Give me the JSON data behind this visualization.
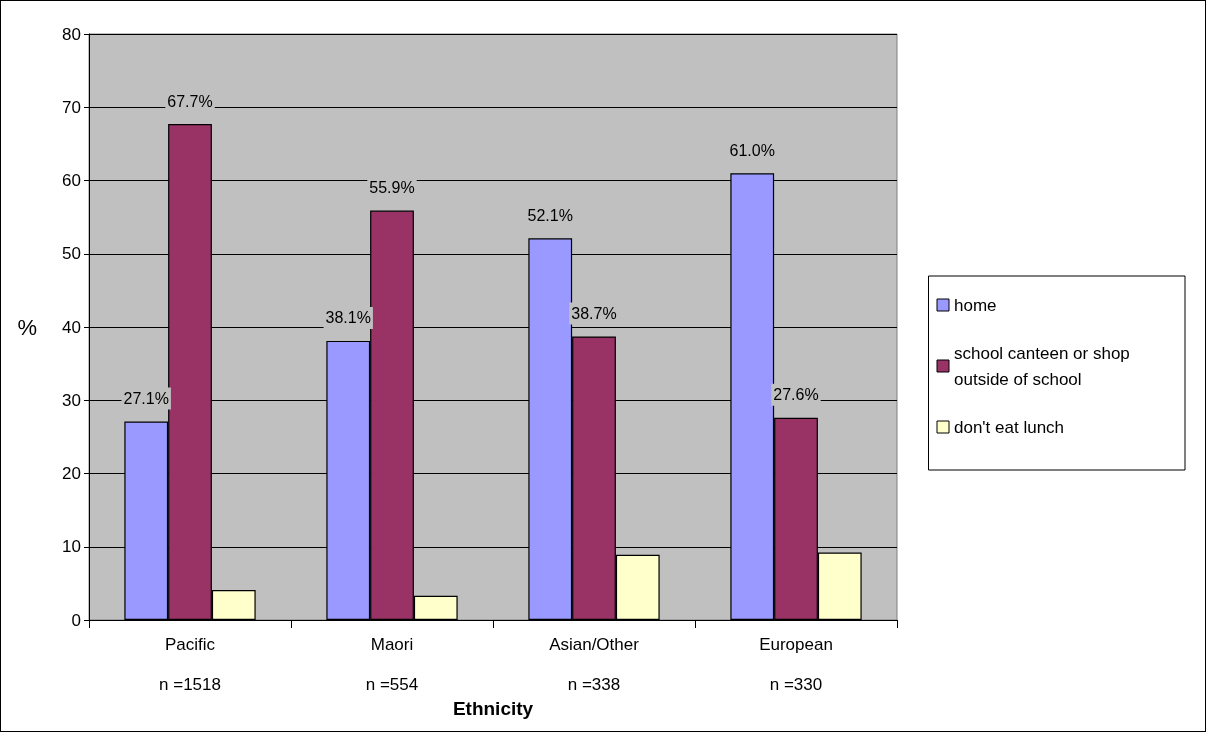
{
  "chart_data": {
    "type": "bar",
    "xlabel": "Ethnicity",
    "ylabel": "%",
    "categories": [
      "Pacific\n\nn =1518",
      "Maori\n\nn =554",
      "Asian/Other\n\nn =338",
      "European\n\nn =330"
    ],
    "series": [
      {
        "name": "home",
        "color": "#9999ff",
        "values": [
          27.1,
          38.1,
          52.1,
          61.0
        ],
        "value_labels": [
          "27.1%",
          "38.1%",
          "52.1%",
          "61.0%"
        ]
      },
      {
        "name": "school canteen or shop outside of school",
        "color": "#993366",
        "values": [
          67.7,
          55.9,
          38.7,
          27.6
        ],
        "value_labels": [
          "67.7%",
          "55.9%",
          "38.7%",
          "27.6%"
        ]
      },
      {
        "name": "don't eat lunch",
        "color": "#ffffcc",
        "values": [
          4.1,
          3.3,
          8.9,
          9.2
        ]
      }
    ],
    "ylim": [
      0,
      80
    ],
    "yticks": [
      0,
      10,
      20,
      30,
      40,
      50,
      60,
      70,
      80
    ],
    "grid": "y",
    "legend": "right"
  }
}
